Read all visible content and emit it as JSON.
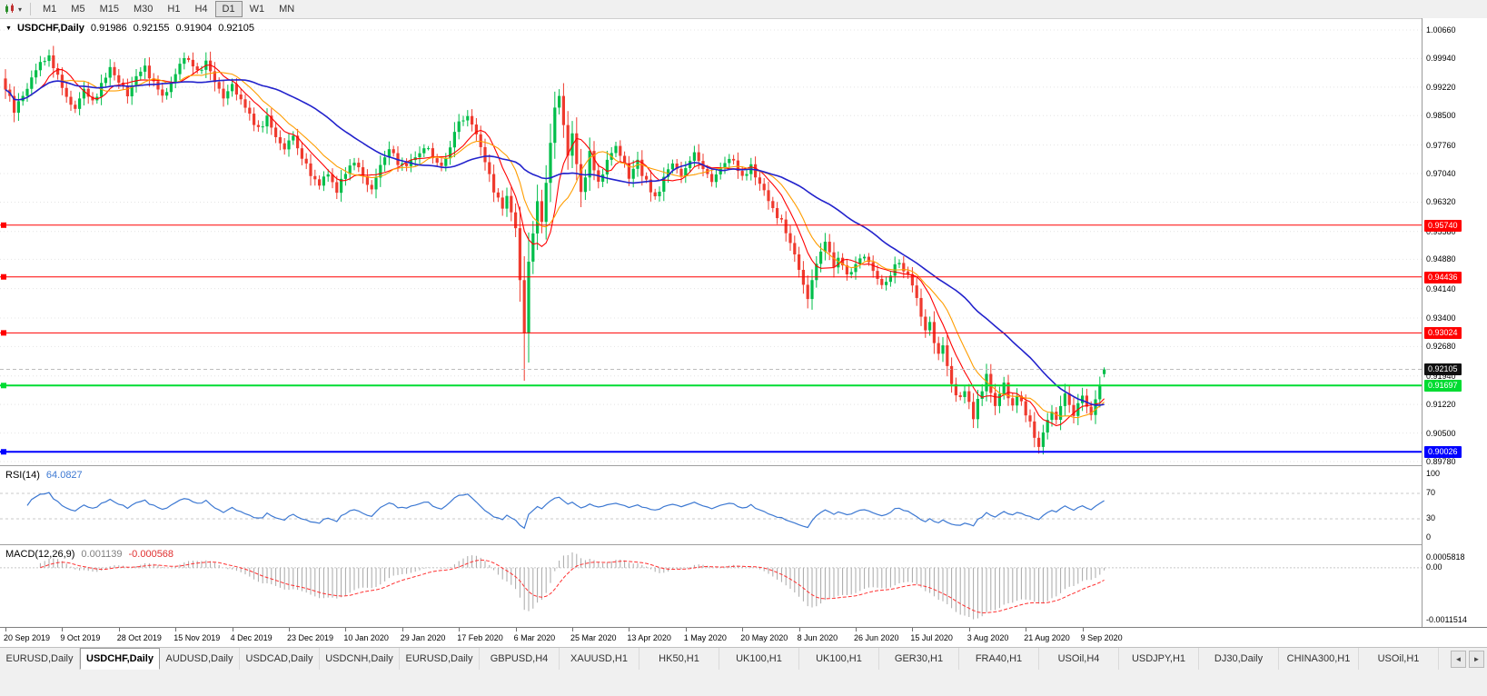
{
  "toolbar": {
    "timeframes": [
      {
        "label": "M1",
        "active": false
      },
      {
        "label": "M5",
        "active": false
      },
      {
        "label": "M15",
        "active": false
      },
      {
        "label": "M30",
        "active": false
      },
      {
        "label": "H1",
        "active": false
      },
      {
        "label": "H4",
        "active": false
      },
      {
        "label": "D1",
        "active": true
      },
      {
        "label": "W1",
        "active": false
      },
      {
        "label": "MN",
        "active": false
      }
    ]
  },
  "chart": {
    "title": "USDCHF,Daily",
    "ohlc": {
      "open": "0.91986",
      "high": "0.92155",
      "low": "0.91904",
      "close": "0.92105"
    },
    "price_axis": [
      "1.00660",
      "0.99940",
      "0.99220",
      "0.98500",
      "0.97760",
      "0.97040",
      "0.96320",
      "0.95580",
      "0.94880",
      "0.94140",
      "0.93400",
      "0.92680",
      "0.91940",
      "0.91220",
      "0.90500",
      "0.89780"
    ],
    "hlines": [
      {
        "price": 0.9574,
        "label": "0.95740",
        "color": "#FF0000",
        "width": 1,
        "name": "resistance-line-1"
      },
      {
        "price": 0.94436,
        "label": "0.94436",
        "color": "#FF0000",
        "width": 1,
        "name": "resistance-line-2"
      },
      {
        "price": 0.93024,
        "label": "0.93024",
        "color": "#FF0000",
        "width": 1,
        "name": "resistance-line-3"
      },
      {
        "price": 0.91697,
        "label": "0.91697",
        "color": "#00DC32",
        "width": 2,
        "name": "support-line-green"
      },
      {
        "price": 0.90026,
        "label": "0.90026",
        "color": "#0000FF",
        "width": 2,
        "name": "support-line-blue"
      }
    ],
    "current_price": {
      "value": 0.92105,
      "label": "0.92105"
    }
  },
  "chart_data": {
    "type": "candlestick",
    "symbol": "USDCHF",
    "timeframe": "Daily",
    "candles_count": 253,
    "last_ohlc": {
      "open": 0.91986,
      "high": 0.92155,
      "low": 0.91904,
      "close": 0.92105
    },
    "close_waypoints": [
      [
        0,
        0.992
      ],
      [
        2,
        0.9862
      ],
      [
        4,
        0.99
      ],
      [
        6,
        0.9945
      ],
      [
        8,
        0.9985
      ],
      [
        10,
        1.0
      ],
      [
        12,
        0.995
      ],
      [
        14,
        0.9898
      ],
      [
        16,
        0.9868
      ],
      [
        18,
        0.9922
      ],
      [
        20,
        0.988
      ],
      [
        22,
        0.993
      ],
      [
        24,
        0.9968
      ],
      [
        26,
        0.994
      ],
      [
        28,
        0.99
      ],
      [
        30,
        0.9944
      ],
      [
        32,
        0.9975
      ],
      [
        34,
        0.993
      ],
      [
        36,
        0.9892
      ],
      [
        38,
        0.9936
      ],
      [
        40,
        0.9985
      ],
      [
        42,
        0.9998
      ],
      [
        44,
        0.9958
      ],
      [
        46,
        0.999
      ],
      [
        48,
        0.9942
      ],
      [
        50,
        0.9902
      ],
      [
        52,
        0.9934
      ],
      [
        54,
        0.989
      ],
      [
        56,
        0.985
      ],
      [
        58,
        0.9818
      ],
      [
        60,
        0.9842
      ],
      [
        62,
        0.98
      ],
      [
        64,
        0.9772
      ],
      [
        66,
        0.9792
      ],
      [
        68,
        0.9744
      ],
      [
        70,
        0.97
      ],
      [
        72,
        0.9682
      ],
      [
        74,
        0.9706
      ],
      [
        76,
        0.9662
      ],
      [
        78,
        0.9712
      ],
      [
        80,
        0.9736
      ],
      [
        82,
        0.97
      ],
      [
        84,
        0.9666
      ],
      [
        86,
        0.9722
      ],
      [
        88,
        0.976
      ],
      [
        90,
        0.9734
      ],
      [
        92,
        0.9722
      ],
      [
        94,
        0.9748
      ],
      [
        96,
        0.9776
      ],
      [
        98,
        0.9744
      ],
      [
        100,
        0.9722
      ],
      [
        102,
        0.9772
      ],
      [
        104,
        0.984
      ],
      [
        106,
        0.9852
      ],
      [
        108,
        0.98
      ],
      [
        110,
        0.973
      ],
      [
        112,
        0.966
      ],
      [
        114,
        0.9622
      ],
      [
        115,
        0.9652
      ],
      [
        116,
        0.9602
      ],
      [
        117,
        0.956
      ],
      [
        118,
        0.944
      ],
      [
        119,
        0.9295
      ],
      [
        120,
        0.948
      ],
      [
        121,
        0.956
      ],
      [
        122,
        0.963
      ],
      [
        123,
        0.958
      ],
      [
        124,
        0.968
      ],
      [
        125,
        0.978
      ],
      [
        126,
        0.987
      ],
      [
        127,
        0.9908
      ],
      [
        128,
        0.983
      ],
      [
        129,
        0.975
      ],
      [
        130,
        0.9798
      ],
      [
        131,
        0.972
      ],
      [
        132,
        0.9652
      ],
      [
        133,
        0.97
      ],
      [
        134,
        0.9758
      ],
      [
        135,
        0.972
      ],
      [
        136,
        0.9682
      ],
      [
        138,
        0.973
      ],
      [
        140,
        0.9768
      ],
      [
        142,
        0.9722
      ],
      [
        143,
        0.9692
      ],
      [
        145,
        0.973
      ],
      [
        147,
        0.9682
      ],
      [
        149,
        0.9642
      ],
      [
        151,
        0.969
      ],
      [
        153,
        0.9728
      ],
      [
        155,
        0.97
      ],
      [
        156,
        0.972
      ],
      [
        158,
        0.9758
      ],
      [
        160,
        0.9722
      ],
      [
        162,
        0.9682
      ],
      [
        164,
        0.972
      ],
      [
        166,
        0.9748
      ],
      [
        168,
        0.9712
      ],
      [
        169,
        0.9692
      ],
      [
        171,
        0.972
      ],
      [
        173,
        0.9682
      ],
      [
        175,
        0.9632
      ],
      [
        177,
        0.96
      ],
      [
        179,
        0.956
      ],
      [
        181,
        0.95
      ],
      [
        182,
        0.9462
      ],
      [
        183,
        0.942
      ],
      [
        184,
        0.939
      ],
      [
        185,
        0.9432
      ],
      [
        186,
        0.947
      ],
      [
        187,
        0.9512
      ],
      [
        188,
        0.954
      ],
      [
        189,
        0.9502
      ],
      [
        190,
        0.9462
      ],
      [
        191,
        0.9492
      ],
      [
        193,
        0.9452
      ],
      [
        195,
        0.9472
      ],
      [
        197,
        0.9502
      ],
      [
        199,
        0.9462
      ],
      [
        201,
        0.9422
      ],
      [
        203,
        0.9452
      ],
      [
        205,
        0.9482
      ],
      [
        207,
        0.9442
      ],
      [
        208,
        0.942
      ],
      [
        209,
        0.9382
      ],
      [
        210,
        0.9342
      ],
      [
        211,
        0.9302
      ],
      [
        212,
        0.9322
      ],
      [
        213,
        0.9282
      ],
      [
        214,
        0.9242
      ],
      [
        215,
        0.9262
      ],
      [
        216,
        0.9222
      ],
      [
        217,
        0.9182
      ],
      [
        218,
        0.9152
      ],
      [
        219,
        0.9132
      ],
      [
        220,
        0.9162
      ],
      [
        221,
        0.9122
      ],
      [
        222,
        0.9092
      ],
      [
        223,
        0.9132
      ],
      [
        224,
        0.9162
      ],
      [
        225,
        0.9192
      ],
      [
        226,
        0.9152
      ],
      [
        227,
        0.9122
      ],
      [
        228,
        0.9152
      ],
      [
        229,
        0.9182
      ],
      [
        230,
        0.9142
      ],
      [
        231,
        0.9112
      ],
      [
        232,
        0.9142
      ],
      [
        233,
        0.9122
      ],
      [
        234,
        0.9102
      ],
      [
        235,
        0.9072
      ],
      [
        236,
        0.9042
      ],
      [
        237,
        0.9012
      ],
      [
        238,
        0.9052
      ],
      [
        239,
        0.9092
      ],
      [
        240,
        0.9112
      ],
      [
        241,
        0.9082
      ],
      [
        242,
        0.9112
      ],
      [
        243,
        0.9142
      ],
      [
        244,
        0.9122
      ],
      [
        245,
        0.9092
      ],
      [
        246,
        0.9122
      ],
      [
        247,
        0.9142
      ],
      [
        248,
        0.9122
      ],
      [
        249,
        0.9102
      ],
      [
        250,
        0.9132
      ],
      [
        251,
        0.9172
      ],
      [
        252,
        0.92105
      ]
    ],
    "spike_lows": [
      {
        "index": 119,
        "low": 0.9182
      },
      {
        "index": 237,
        "low": 0.8998
      }
    ],
    "date_ticks": [
      {
        "index": 0,
        "label": "20 Sep 2019"
      },
      {
        "index": 13,
        "label": "9 Oct 2019"
      },
      {
        "index": 26,
        "label": "28 Oct 2019"
      },
      {
        "index": 39,
        "label": "15 Nov 2019"
      },
      {
        "index": 52,
        "label": "4 Dec 2019"
      },
      {
        "index": 65,
        "label": "23 Dec 2019"
      },
      {
        "index": 78,
        "label": "10 Jan 2020"
      },
      {
        "index": 91,
        "label": "29 Jan 2020"
      },
      {
        "index": 104,
        "label": "17 Feb 2020"
      },
      {
        "index": 117,
        "label": "6 Mar 2020"
      },
      {
        "index": 130,
        "label": "25 Mar 2020"
      },
      {
        "index": 143,
        "label": "13 Apr 2020"
      },
      {
        "index": 156,
        "label": "1 May 2020"
      },
      {
        "index": 169,
        "label": "20 May 2020"
      },
      {
        "index": 182,
        "label": "8 Jun 2020"
      },
      {
        "index": 195,
        "label": "26 Jun 2020"
      },
      {
        "index": 208,
        "label": "15 Jul 2020"
      },
      {
        "index": 221,
        "label": "3 Aug 2020"
      },
      {
        "index": 234,
        "label": "21 Aug 2020"
      },
      {
        "index": 247,
        "label": "9 Sep 2020"
      }
    ],
    "moving_averages": [
      {
        "period": 8,
        "color": "#FF0000"
      },
      {
        "period": 13,
        "color": "#FF9D00"
      },
      {
        "period": 34,
        "color": "#2222CC"
      }
    ]
  },
  "rsi": {
    "title": "RSI(14)",
    "value": "64.0827",
    "levels": [
      {
        "value": 100,
        "label": "100"
      },
      {
        "value": 70,
        "label": "70"
      },
      {
        "value": 30,
        "label": "30"
      },
      {
        "value": 0,
        "label": "0"
      }
    ],
    "line_color": "#3C78D2"
  },
  "macd": {
    "title": "MACD(12,26,9)",
    "value_main": "0.001139",
    "value_signal": "-0.000568",
    "level_top": "0.0005818",
    "level_zero": "0.00",
    "level_bottom": "-0.0011514",
    "bar_color": "#A8A8A8",
    "signal_color": "#FF3232"
  },
  "colors": {
    "candle_up": "#00BE4A",
    "candle_down": "#EF3A2E",
    "grid": "#E4E4E4",
    "badge_black": "#111111"
  },
  "tabs": {
    "items": [
      {
        "label": "EURUSD,Daily",
        "active": false
      },
      {
        "label": "USDCHF,Daily",
        "active": true
      },
      {
        "label": "AUDUSD,Daily",
        "active": false
      },
      {
        "label": "USDCAD,Daily",
        "active": false
      },
      {
        "label": "USDCNH,Daily",
        "active": false
      },
      {
        "label": "EURUSD,Daily",
        "active": false
      },
      {
        "label": "GBPUSD,H4",
        "active": false
      },
      {
        "label": "XAUUSD,H1",
        "active": false
      },
      {
        "label": "HK50,H1",
        "active": false
      },
      {
        "label": "UK100,H1",
        "active": false
      },
      {
        "label": "UK100,H1",
        "active": false
      },
      {
        "label": "GER30,H1",
        "active": false
      },
      {
        "label": "FRA40,H1",
        "active": false
      },
      {
        "label": "USOil,H4",
        "active": false
      },
      {
        "label": "USDJPY,H1",
        "active": false
      },
      {
        "label": "DJ30,Daily",
        "active": false
      },
      {
        "label": "CHINA300,H1",
        "active": false
      },
      {
        "label": "USOil,H1",
        "active": false
      }
    ],
    "scroll_left": "◄",
    "scroll_right": "►"
  }
}
